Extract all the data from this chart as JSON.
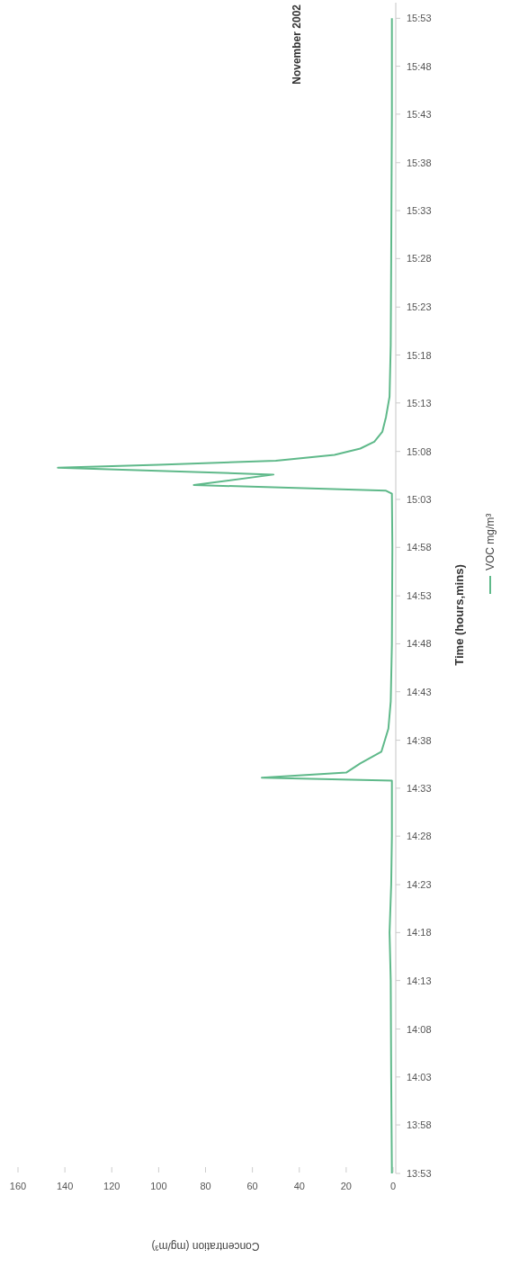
{
  "chart_data": {
    "type": "line",
    "title": "November 2002",
    "xlabel": "Concentration (mg/m³)",
    "ylabel": "Time (hours,mins)",
    "series": [
      {
        "name": "VOC mg/m³",
        "color": "#5fb98a",
        "x": [
          0.5,
          0.8,
          1,
          1.5,
          0.8,
          0.5,
          0.5,
          56,
          20,
          14,
          5,
          2,
          1,
          0.5,
          0.3,
          0.5,
          3,
          85,
          51,
          143,
          100,
          50,
          25,
          14,
          8,
          4.6,
          3,
          1.5,
          1,
          0.8,
          0.5,
          0.5
        ],
        "values": [
          13.883,
          14.05,
          14.217,
          14.3,
          14.383,
          14.467,
          14.563,
          14.568,
          14.577,
          14.593,
          14.613,
          14.653,
          14.7,
          14.8,
          14.967,
          15.06,
          15.065,
          15.075,
          15.093,
          15.105,
          15.11,
          15.117,
          15.127,
          15.138,
          15.15,
          15.167,
          15.193,
          15.228,
          15.317,
          15.467,
          15.717,
          15.883
        ]
      }
    ],
    "xlim": [
      160,
      0
    ],
    "xticks": [
      0,
      20,
      40,
      60,
      80,
      100,
      120,
      140,
      160
    ],
    "ylim": [
      13.883,
      15.91
    ],
    "yticks": [
      {
        "value": 13.883,
        "label": "13:53"
      },
      {
        "value": 13.967,
        "label": "13:58"
      },
      {
        "value": 14.05,
        "label": "14:03"
      },
      {
        "value": 14.133,
        "label": "14:08"
      },
      {
        "value": 14.217,
        "label": "14:13"
      },
      {
        "value": 14.3,
        "label": "14:18"
      },
      {
        "value": 14.383,
        "label": "14:23"
      },
      {
        "value": 14.467,
        "label": "14:28"
      },
      {
        "value": 14.55,
        "label": "14:33"
      },
      {
        "value": 14.633,
        "label": "14:38"
      },
      {
        "value": 14.717,
        "label": "14:43"
      },
      {
        "value": 14.8,
        "label": "14:48"
      },
      {
        "value": 14.883,
        "label": "14:53"
      },
      {
        "value": 14.967,
        "label": "14:58"
      },
      {
        "value": 15.05,
        "label": "15:03"
      },
      {
        "value": 15.133,
        "label": "15:08"
      },
      {
        "value": 15.217,
        "label": "15:13"
      },
      {
        "value": 15.3,
        "label": "15:18"
      },
      {
        "value": 15.383,
        "label": "15:23"
      },
      {
        "value": 15.467,
        "label": "15:28"
      },
      {
        "value": 15.55,
        "label": "15:33"
      },
      {
        "value": 15.633,
        "label": "15:38"
      },
      {
        "value": 15.717,
        "label": "15:43"
      },
      {
        "value": 15.8,
        "label": "15:48"
      },
      {
        "value": 15.883,
        "label": "15:53"
      }
    ],
    "legend": "right"
  }
}
